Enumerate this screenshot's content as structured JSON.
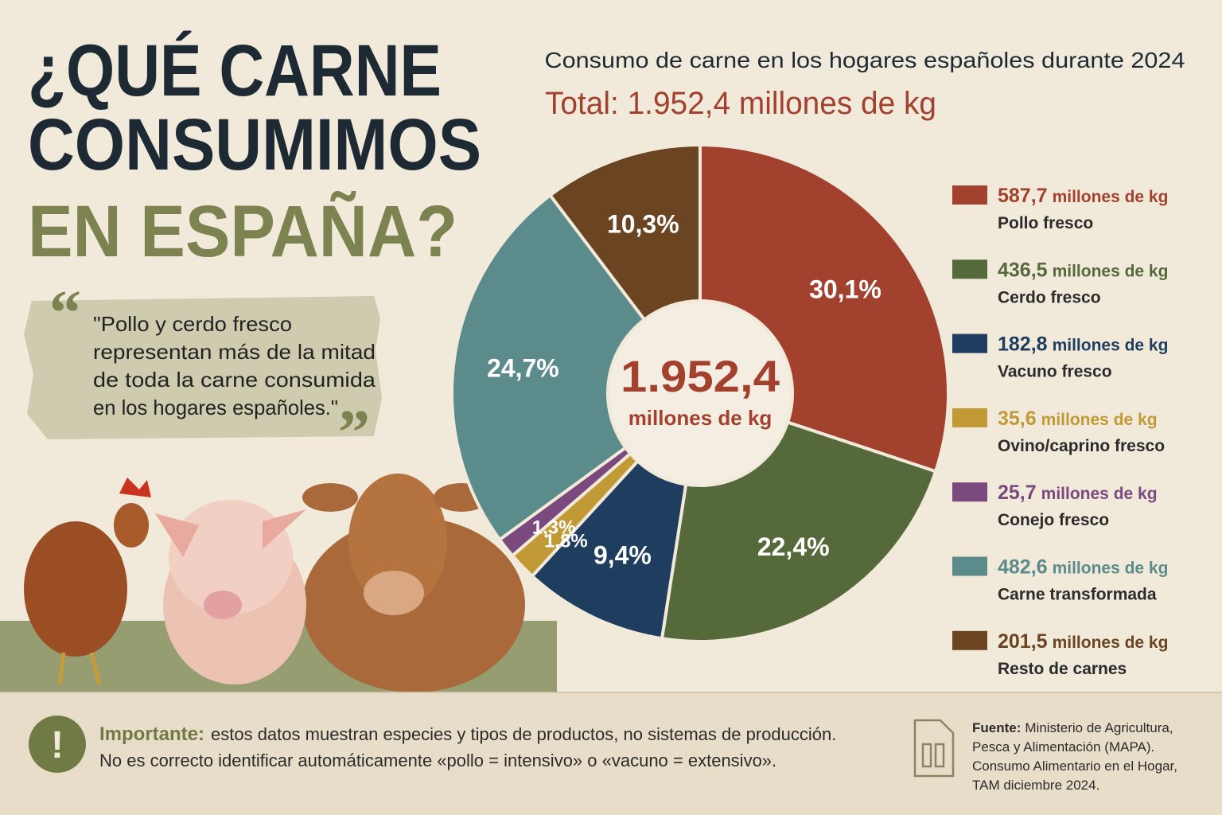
{
  "header": {
    "title_lines": [
      "¿QUÉ CARNE",
      "CONSUMIMOS",
      "EN ESPAÑA?"
    ]
  },
  "quote": {
    "lines": [
      "\"Pollo y cerdo fresco",
      "representan más de la mitad",
      "de toda la carne consumida",
      "en los hogares españoles.\""
    ]
  },
  "chart_data": {
    "type": "donut",
    "title": "Consumo de carne en los hogares españoles durante 2024",
    "subtitle": "Total: 1.952,4 millones de kg",
    "total": 1952.4,
    "total_label": "1.952,4",
    "unit": "millones de kg",
    "categories": [
      "Pollo fresco",
      "Cerdo fresco",
      "Vacuno fresco",
      "Ovino/caprino fresco",
      "Conejo fresco",
      "Carne transformada",
      "Resto de carnes"
    ],
    "values": [
      587.7,
      436.5,
      182.8,
      35.6,
      25.7,
      482.6,
      201.5
    ],
    "value_labels": [
      "587,7",
      "436,5",
      "182,8",
      "35,6",
      "25,7",
      "482,6",
      "201,5"
    ],
    "percentages": [
      30.1,
      22.4,
      9.4,
      1.8,
      1.3,
      24.7,
      10.3
    ],
    "percentage_labels": [
      "30,1%",
      "22,4%",
      "9,4%",
      "1,8%",
      "1,3%",
      "24,7%",
      "10,3%"
    ],
    "colors": [
      "#a3412f",
      "#56693b",
      "#1f3d5e",
      "#c29a35",
      "#7a4a7e",
      "#5b8b8b",
      "#6b4522"
    ]
  },
  "footer": {
    "important_label": "Importante:",
    "important_text": "estos datos muestran especies y tipos de productos, no sistemas de producción.",
    "important_line2": "No es correcto identificar automáticamente «pollo = intensivo» o «vacuno = extensivo».",
    "source_label": "Fuente:",
    "source_lines": [
      "Ministerio de Agricultura,",
      "Pesca y Alimentación (MAPA).",
      "Consumo Alimentario en el Hogar,",
      "TAM diciembre 2024."
    ]
  }
}
